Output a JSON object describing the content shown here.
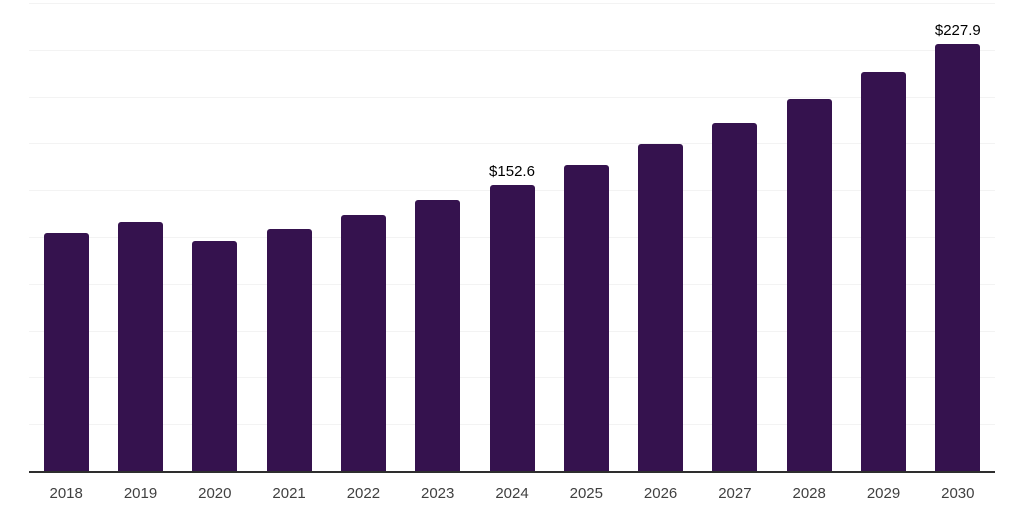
{
  "chart": {
    "background": "#ffffff",
    "bar_color": "#35124E",
    "axis_line_color": "#2e2e2e",
    "gridline_color": "#f3f3f3",
    "data_label_color": "#000000",
    "tick_label_color": "#404040"
  },
  "chart_data": {
    "type": "bar",
    "title": "",
    "xlabel": "",
    "ylabel": "",
    "categories": [
      "2018",
      "2019",
      "2020",
      "2021",
      "2022",
      "2023",
      "2024",
      "2025",
      "2026",
      "2027",
      "2028",
      "2029",
      "2030"
    ],
    "values": [
      127.4,
      133.2,
      122.9,
      129.3,
      136.8,
      144.8,
      152.6,
      163.4,
      174.5,
      186.1,
      198.7,
      213.2,
      227.9
    ],
    "data_labels": [
      "",
      "",
      "",
      "",
      "",
      "",
      "$152.6",
      "",
      "",
      "",
      "",
      "",
      "$227.9"
    ],
    "ylim": [
      0,
      250
    ],
    "gridline_step": 25,
    "grid": true,
    "legend_position": "none",
    "y_axis_labels_visible": false,
    "x_axis_labels_visible": true
  }
}
